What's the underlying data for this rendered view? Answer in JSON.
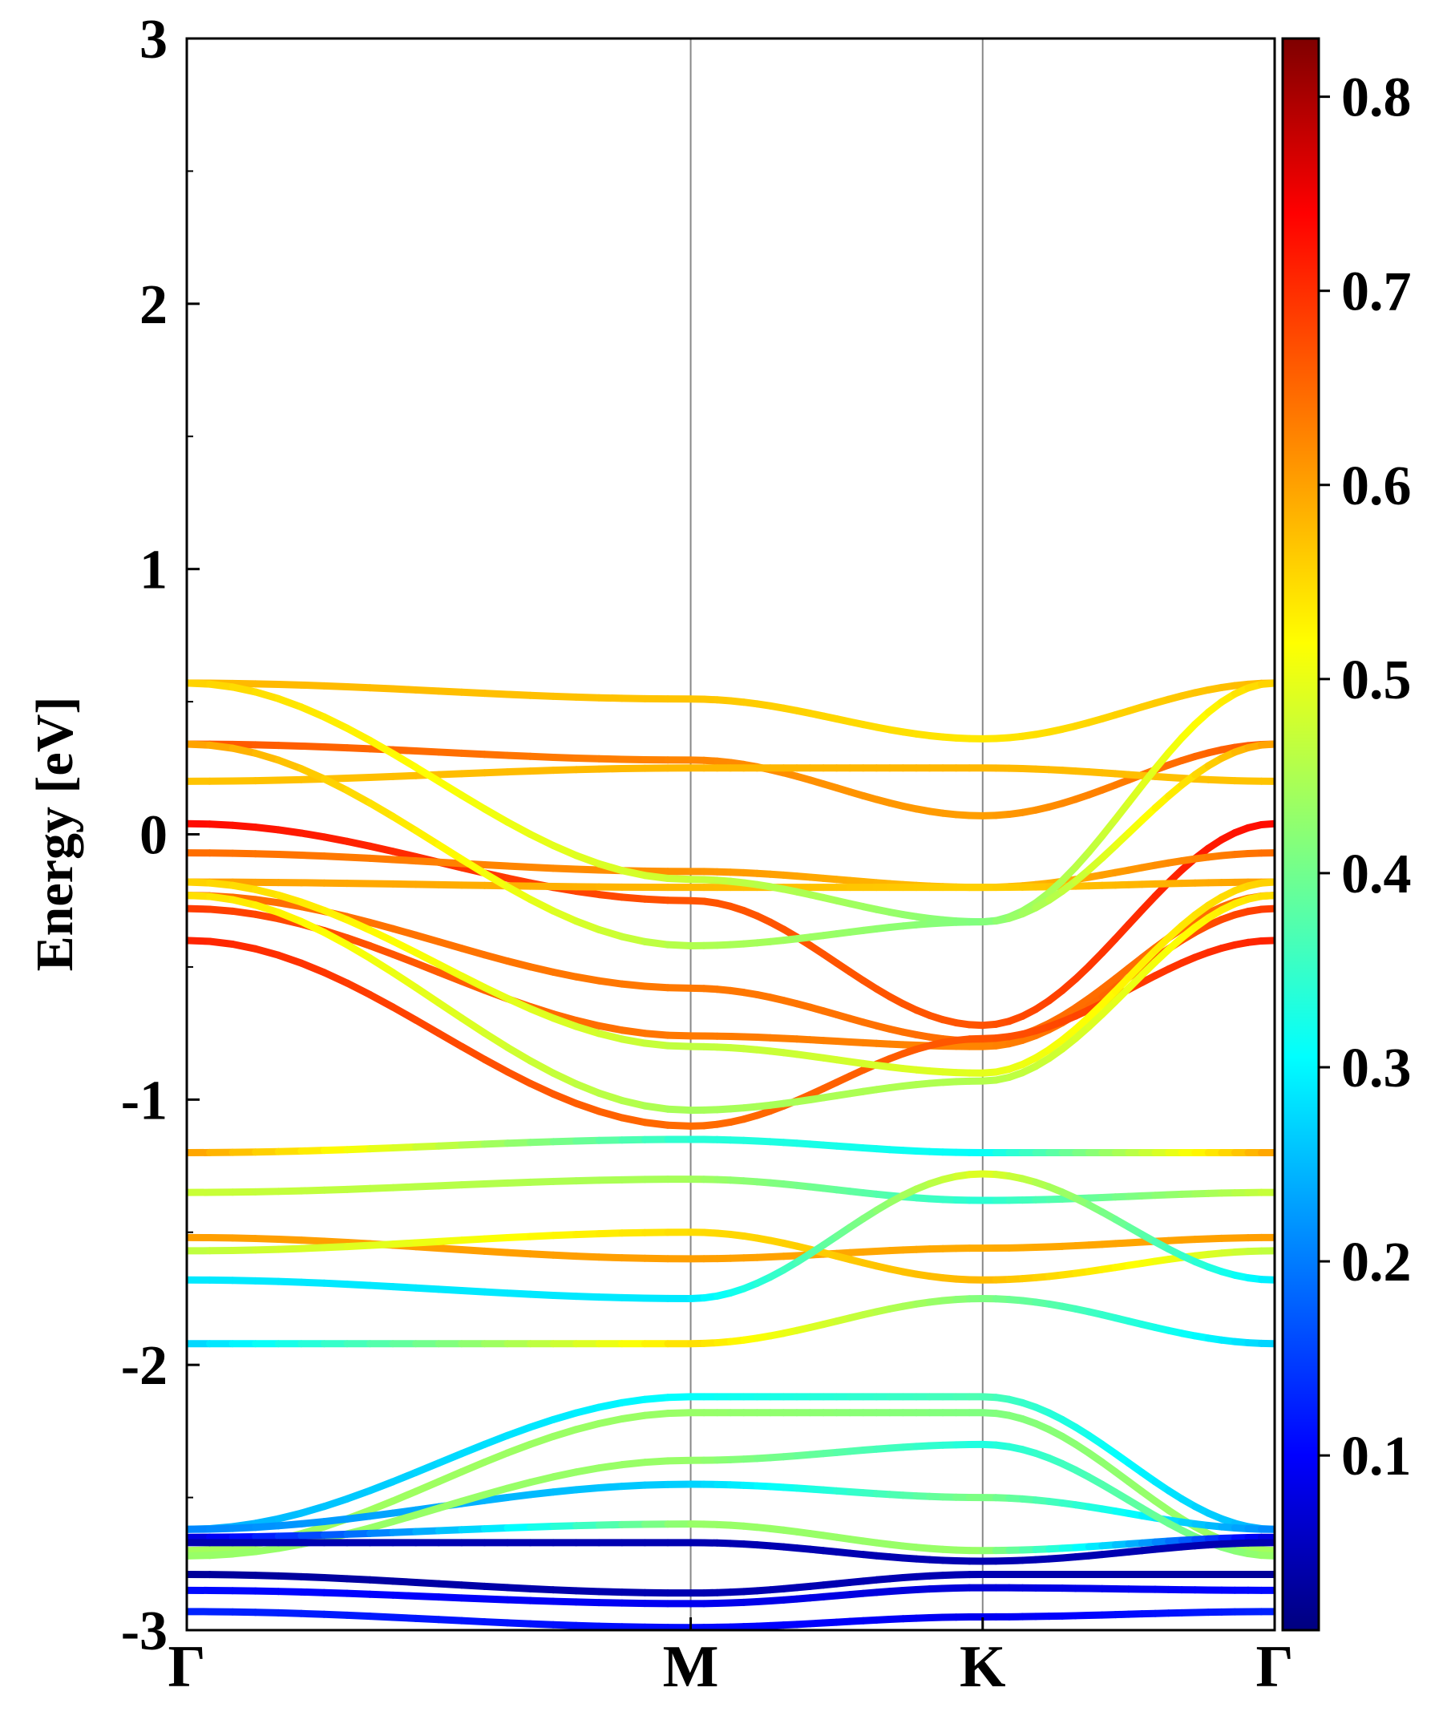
{
  "chart_data": {
    "type": "line",
    "title": "",
    "xlabel": "",
    "ylabel": "Energy [eV]",
    "ylim": [
      -3,
      3
    ],
    "yticks": [
      "3",
      "2",
      "1",
      "0",
      "-1",
      "-2",
      "-3"
    ],
    "ytick_values": [
      3,
      2,
      1,
      0,
      -1,
      -2,
      -3
    ],
    "kpath": [
      {
        "label": "Γ",
        "pos": 0.0
      },
      {
        "label": "M",
        "pos": 0.4632
      },
      {
        "label": "K",
        "pos": 0.7316
      },
      {
        "label": "Γ",
        "pos": 1.0
      }
    ],
    "grid": false,
    "legend": "none",
    "colormap": "jet",
    "color_range": [
      0.01,
      0.83
    ],
    "colorbar": {
      "ticks": [
        "0.1",
        "0.2",
        "0.3",
        "0.4",
        "0.5",
        "0.6",
        "0.7",
        "0.8"
      ],
      "tick_values": [
        0.1,
        0.2,
        0.3,
        0.4,
        0.5,
        0.6,
        0.7,
        0.8
      ]
    },
    "bands": [
      {
        "x": [
          0,
          0.4632,
          0.7316,
          1.0
        ],
        "y": [
          0.57,
          0.51,
          0.36,
          0.57
        ],
        "c": [
          0.58,
          0.57,
          0.54,
          0.58
        ]
      },
      {
        "x": [
          0,
          0.4632,
          0.7316,
          1.0
        ],
        "y": [
          0.34,
          0.28,
          0.07,
          0.34
        ],
        "c": [
          0.66,
          0.62,
          0.6,
          0.66
        ]
      },
      {
        "x": [
          0,
          0.4632,
          0.7316,
          1.0
        ],
        "y": [
          0.2,
          0.25,
          0.25,
          0.2
        ],
        "c": [
          0.57,
          0.58,
          0.58,
          0.57
        ]
      },
      {
        "x": [
          0,
          0.4632,
          0.7316,
          1.0
        ],
        "y": [
          0.04,
          -0.25,
          -0.72,
          0.04
        ],
        "c": [
          0.72,
          0.66,
          0.66,
          0.72
        ]
      },
      {
        "x": [
          0,
          0.4632,
          0.7316,
          1.0
        ],
        "y": [
          -0.07,
          -0.14,
          -0.2,
          -0.07
        ],
        "c": [
          0.64,
          0.61,
          0.57,
          0.64
        ]
      },
      {
        "x": [
          0,
          0.4632,
          0.7316,
          1.0
        ],
        "y": [
          -0.18,
          -0.2,
          -0.2,
          -0.18
        ],
        "c": [
          0.6,
          0.58,
          0.56,
          0.6
        ]
      },
      {
        "x": [
          0,
          0.4632,
          0.7316,
          1.0
        ],
        "y": [
          -0.23,
          -0.58,
          -0.78,
          -0.23
        ],
        "c": [
          0.64,
          0.63,
          0.64,
          0.64
        ]
      },
      {
        "x": [
          0,
          0.4632,
          0.7316,
          1.0
        ],
        "y": [
          -0.28,
          -0.76,
          -0.8,
          -0.28
        ],
        "c": [
          0.68,
          0.63,
          0.62,
          0.68
        ]
      },
      {
        "x": [
          0,
          0.4632,
          0.7316,
          1.0
        ],
        "y": [
          -0.4,
          -1.1,
          -0.77,
          -0.4
        ],
        "c": [
          0.7,
          0.64,
          0.66,
          0.7
        ]
      },
      {
        "x": [
          0,
          0.4632,
          0.7316,
          1.0
        ],
        "y": [
          0.57,
          -0.17,
          -0.33,
          0.57
        ],
        "c": [
          0.56,
          0.48,
          0.42,
          0.56
        ]
      },
      {
        "x": [
          0,
          0.4632,
          0.7316,
          1.0
        ],
        "y": [
          0.34,
          -0.42,
          -0.33,
          0.34
        ],
        "c": [
          0.6,
          0.46,
          0.42,
          0.6
        ]
      },
      {
        "x": [
          0,
          0.4632,
          0.7316,
          1.0
        ],
        "y": [
          -0.18,
          -0.8,
          -0.9,
          -0.18
        ],
        "c": [
          0.56,
          0.47,
          0.5,
          0.56
        ]
      },
      {
        "x": [
          0,
          0.4632,
          0.7316,
          1.0
        ],
        "y": [
          -0.23,
          -1.04,
          -0.93,
          -0.23
        ],
        "c": [
          0.55,
          0.45,
          0.46,
          0.55
        ]
      },
      {
        "x": [
          0,
          0.4632,
          0.7316,
          1.0
        ],
        "y": [
          -1.2,
          -1.15,
          -1.2,
          -1.2
        ],
        "c": [
          0.6,
          0.35,
          0.32,
          0.6
        ]
      },
      {
        "x": [
          0,
          0.4632,
          0.7316,
          1.0
        ],
        "y": [
          -1.35,
          -1.3,
          -1.38,
          -1.35
        ],
        "c": [
          0.48,
          0.45,
          0.35,
          0.48
        ]
      },
      {
        "x": [
          0,
          0.4632,
          0.7316,
          1.0
        ],
        "y": [
          -1.52,
          -1.6,
          -1.56,
          -1.52
        ],
        "c": [
          0.6,
          0.6,
          0.59,
          0.6
        ]
      },
      {
        "x": [
          0,
          0.4632,
          0.7316,
          1.0
        ],
        "y": [
          -1.57,
          -1.5,
          -1.68,
          -1.57
        ],
        "c": [
          0.47,
          0.55,
          0.58,
          0.47
        ]
      },
      {
        "x": [
          0,
          0.4632,
          0.7316,
          1.0
        ],
        "y": [
          -1.68,
          -1.75,
          -1.28,
          -1.68
        ],
        "c": [
          0.3,
          0.3,
          0.5,
          0.3
        ]
      },
      {
        "x": [
          0,
          0.4632,
          0.7316,
          1.0
        ],
        "y": [
          -1.92,
          -1.92,
          -1.75,
          -1.92
        ],
        "c": [
          0.28,
          0.55,
          0.42,
          0.28
        ]
      },
      {
        "x": [
          0,
          0.4632,
          0.7316,
          1.0
        ],
        "y": [
          -2.62,
          -2.12,
          -2.12,
          -2.62
        ],
        "c": [
          0.25,
          0.32,
          0.38,
          0.25
        ]
      },
      {
        "x": [
          0,
          0.4632,
          0.7316,
          1.0
        ],
        "y": [
          -2.7,
          -2.18,
          -2.18,
          -2.7
        ],
        "c": [
          0.45,
          0.44,
          0.42,
          0.45
        ]
      },
      {
        "x": [
          0,
          0.4632,
          0.7316,
          1.0
        ],
        "y": [
          -2.62,
          -2.45,
          -2.5,
          -2.62
        ],
        "c": [
          0.22,
          0.28,
          0.42,
          0.22
        ]
      },
      {
        "x": [
          0,
          0.4632,
          0.7316,
          1.0
        ],
        "y": [
          -2.72,
          -2.36,
          -2.3,
          -2.72
        ],
        "c": [
          0.44,
          0.44,
          0.34,
          0.44
        ]
      },
      {
        "x": [
          0,
          0.4632,
          0.7316,
          1.0
        ],
        "y": [
          -2.65,
          -2.6,
          -2.7,
          -2.65
        ],
        "c": [
          0.08,
          0.44,
          0.44,
          0.08
        ]
      },
      {
        "x": [
          0,
          0.4632,
          0.7316,
          1.0
        ],
        "y": [
          -2.67,
          -2.67,
          -2.74,
          -2.67
        ],
        "c": [
          0.05,
          0.05,
          0.05,
          0.05
        ]
      },
      {
        "x": [
          0,
          0.4632,
          0.7316,
          1.0
        ],
        "y": [
          -2.79,
          -2.86,
          -2.79,
          -2.79
        ],
        "c": [
          0.03,
          0.05,
          0.05,
          0.03
        ]
      },
      {
        "x": [
          0,
          0.4632,
          0.7316,
          1.0
        ],
        "y": [
          -2.85,
          -2.9,
          -2.84,
          -2.85
        ],
        "c": [
          0.12,
          0.1,
          0.08,
          0.12
        ]
      },
      {
        "x": [
          0,
          0.4632,
          0.7316,
          1.0
        ],
        "y": [
          -2.93,
          -2.99,
          -2.95,
          -2.93
        ],
        "c": [
          0.14,
          0.12,
          0.1,
          0.14
        ]
      }
    ]
  }
}
